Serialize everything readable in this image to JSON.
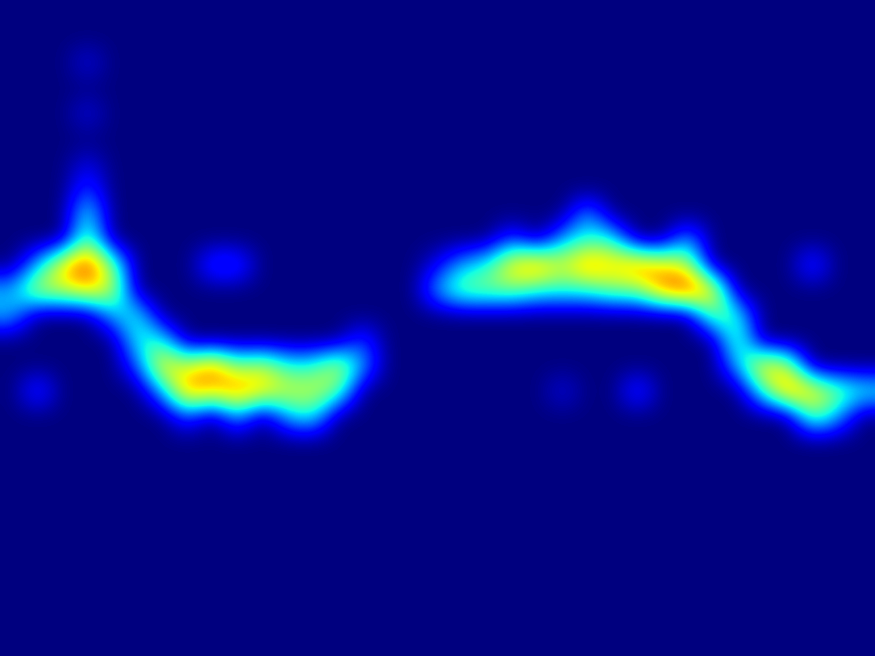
{
  "chart_data": {
    "type": "heatmap",
    "tick_labels": false,
    "zlim": [
      0,
      10
    ],
    "cells": [
      [
        0,
        0,
        0,
        0,
        0,
        0,
        0,
        0,
        0,
        0,
        0,
        0,
        0,
        0,
        0,
        0,
        0,
        0,
        0,
        0,
        0,
        0,
        0,
        0,
        0,
        0,
        0,
        0,
        0,
        0,
        0,
        0,
        0,
        0,
        0
      ],
      [
        0,
        0,
        0,
        0,
        0,
        0,
        0,
        0,
        0,
        0,
        0,
        0,
        0,
        0,
        0,
        0,
        0,
        0,
        0,
        0,
        0,
        0,
        0,
        0,
        0,
        0,
        0,
        0,
        0,
        0,
        0,
        0,
        0,
        0,
        0
      ],
      [
        0,
        0,
        0,
        1,
        0,
        0,
        0,
        0,
        0,
        0,
        0,
        0,
        0,
        0,
        0,
        0,
        0,
        0,
        0,
        0,
        0,
        0,
        0,
        0,
        0,
        0,
        0,
        0,
        0,
        0,
        0,
        0,
        0,
        0,
        0
      ],
      [
        0,
        0,
        0,
        0,
        0,
        0,
        0,
        0,
        0,
        0,
        0,
        0,
        0,
        0,
        0,
        0,
        0,
        0,
        0,
        0,
        0,
        0,
        0,
        0,
        0,
        0,
        0,
        0,
        0,
        0,
        0,
        0,
        0,
        0,
        0
      ],
      [
        0,
        0,
        0,
        1,
        0,
        0,
        0,
        0,
        0,
        0,
        0,
        0,
        0,
        0,
        0,
        0,
        0,
        0,
        0,
        0,
        0,
        0,
        0,
        0,
        0,
        0,
        0,
        0,
        0,
        0,
        0,
        0,
        0,
        0,
        0
      ],
      [
        0,
        0,
        0,
        0,
        0,
        0,
        0,
        0,
        0,
        0,
        0,
        0,
        0,
        0,
        0,
        0,
        0,
        0,
        0,
        0,
        0,
        0,
        0,
        0,
        0,
        0,
        0,
        0,
        0,
        0,
        0,
        0,
        0,
        0,
        0
      ],
      [
        0,
        0,
        0,
        1,
        0,
        0,
        0,
        0,
        0,
        0,
        0,
        0,
        0,
        0,
        0,
        0,
        0,
        0,
        0,
        0,
        0,
        0,
        0,
        0,
        0,
        0,
        0,
        0,
        0,
        0,
        0,
        0,
        0,
        0,
        0
      ],
      [
        0,
        0,
        0,
        2,
        0,
        0,
        0,
        0,
        0,
        0,
        0,
        0,
        0,
        0,
        0,
        0,
        0,
        0,
        0,
        0,
        0,
        0,
        0,
        0,
        0,
        0,
        0,
        0,
        0,
        0,
        0,
        0,
        0,
        0,
        0
      ],
      [
        0,
        0,
        0,
        4,
        0,
        0,
        0,
        0,
        0,
        0,
        0,
        0,
        0,
        0,
        0,
        0,
        0,
        0,
        0,
        0,
        0,
        0,
        0,
        3,
        0,
        0,
        0,
        0,
        0,
        0,
        0,
        0,
        0,
        0,
        0
      ],
      [
        0,
        0,
        0,
        5,
        0,
        0,
        0,
        0,
        0,
        0,
        0,
        0,
        0,
        0,
        0,
        0,
        0,
        0,
        0,
        0,
        2,
        0,
        3,
        4,
        4,
        0,
        0,
        3,
        0,
        0,
        0,
        0,
        0,
        0,
        0
      ],
      [
        0,
        3,
        7,
        9,
        5,
        0,
        0,
        0,
        2,
        2,
        0,
        0,
        0,
        0,
        0,
        0,
        0,
        1,
        3,
        4,
        7,
        8,
        6,
        8,
        7,
        8,
        7,
        6,
        0,
        0,
        0,
        0,
        2,
        0,
        0
      ],
      [
        3,
        6,
        6,
        7,
        6,
        0,
        0,
        0,
        0,
        0,
        0,
        0,
        0,
        0,
        0,
        0,
        0,
        3,
        5,
        5,
        5,
        4,
        4,
        4,
        5,
        5,
        8,
        9,
        7,
        0,
        0,
        0,
        0,
        0,
        0
      ],
      [
        3,
        0,
        0,
        0,
        3,
        4,
        0,
        0,
        0,
        0,
        0,
        0,
        0,
        0,
        0,
        0,
        0,
        0,
        0,
        0,
        0,
        0,
        0,
        0,
        0,
        0,
        0,
        0,
        5,
        4,
        0,
        0,
        0,
        0,
        0
      ],
      [
        0,
        0,
        0,
        0,
        0,
        4,
        4,
        0,
        0,
        0,
        0,
        0,
        0,
        0,
        2,
        0,
        0,
        0,
        0,
        0,
        0,
        0,
        0,
        0,
        0,
        0,
        0,
        0,
        0,
        5,
        0,
        0,
        0,
        0,
        0
      ],
      [
        0,
        0,
        0,
        0,
        0,
        2,
        7,
        6,
        8,
        5,
        6,
        4,
        4,
        6,
        3,
        0,
        0,
        0,
        0,
        0,
        0,
        0,
        0,
        0,
        0,
        0,
        0,
        0,
        0,
        3,
        7,
        6,
        0,
        0,
        0
      ],
      [
        0,
        2,
        0,
        0,
        0,
        0,
        3,
        8,
        7,
        8,
        7,
        6,
        6,
        5,
        0,
        0,
        0,
        0,
        0,
        0,
        0,
        0,
        1,
        0,
        0,
        2,
        0,
        0,
        0,
        0,
        4,
        8,
        7,
        5,
        4
      ],
      [
        0,
        0,
        0,
        0,
        0,
        0,
        0,
        2,
        0,
        3,
        0,
        3,
        4,
        0,
        0,
        0,
        0,
        0,
        0,
        0,
        0,
        0,
        0,
        0,
        0,
        0,
        0,
        0,
        0,
        0,
        0,
        0,
        5,
        3,
        0
      ],
      [
        0,
        0,
        0,
        0,
        0,
        0,
        0,
        0,
        0,
        0,
        0,
        0,
        0,
        0,
        0,
        0,
        0,
        0,
        0,
        0,
        0,
        0,
        0,
        0,
        0,
        0,
        0,
        0,
        0,
        0,
        0,
        0,
        0,
        0,
        0
      ],
      [
        0,
        0,
        0,
        0,
        0,
        0,
        0,
        0,
        0,
        0,
        0,
        0,
        0,
        0,
        0,
        0,
        0,
        0,
        0,
        0,
        0,
        0,
        0,
        0,
        0,
        0,
        0,
        0,
        0,
        0,
        0,
        0,
        0,
        0,
        0
      ],
      [
        0,
        0,
        0,
        0,
        0,
        0,
        0,
        0,
        0,
        0,
        0,
        0,
        0,
        0,
        0,
        0,
        0,
        0,
        0,
        0,
        0,
        0,
        0,
        0,
        0,
        0,
        0,
        0,
        0,
        0,
        0,
        0,
        0,
        0,
        0
      ],
      [
        0,
        0,
        0,
        0,
        0,
        0,
        0,
        0,
        0,
        0,
        0,
        0,
        0,
        0,
        0,
        0,
        0,
        0,
        0,
        0,
        0,
        0,
        0,
        0,
        0,
        0,
        0,
        0,
        0,
        0,
        0,
        0,
        0,
        0,
        0
      ],
      [
        0,
        0,
        0,
        0,
        0,
        0,
        0,
        0,
        0,
        0,
        0,
        0,
        0,
        0,
        0,
        0,
        0,
        0,
        0,
        0,
        0,
        0,
        0,
        0,
        0,
        0,
        0,
        0,
        0,
        0,
        0,
        0,
        0,
        0,
        0
      ],
      [
        0,
        0,
        0,
        0,
        0,
        0,
        0,
        0,
        0,
        0,
        0,
        0,
        0,
        0,
        0,
        0,
        0,
        0,
        0,
        0,
        0,
        0,
        0,
        0,
        0,
        0,
        0,
        0,
        0,
        0,
        0,
        0,
        0,
        0,
        0
      ],
      [
        0,
        0,
        0,
        0,
        0,
        0,
        0,
        0,
        0,
        0,
        0,
        0,
        0,
        0,
        0,
        0,
        0,
        0,
        0,
        0,
        0,
        0,
        0,
        0,
        0,
        0,
        0,
        0,
        0,
        0,
        0,
        0,
        0,
        0,
        0
      ],
      [
        0,
        0,
        0,
        0,
        0,
        0,
        0,
        0,
        0,
        0,
        0,
        0,
        0,
        0,
        0,
        0,
        0,
        0,
        0,
        0,
        0,
        0,
        0,
        0,
        0,
        0,
        0,
        0,
        0,
        0,
        0,
        0,
        0,
        0,
        0
      ],
      [
        0,
        0,
        0,
        0,
        0,
        0,
        0,
        0,
        0,
        0,
        0,
        0,
        0,
        0,
        0,
        0,
        0,
        0,
        0,
        0,
        0,
        0,
        0,
        0,
        0,
        0,
        0,
        0,
        0,
        0,
        0,
        0,
        0,
        0,
        0
      ]
    ]
  }
}
